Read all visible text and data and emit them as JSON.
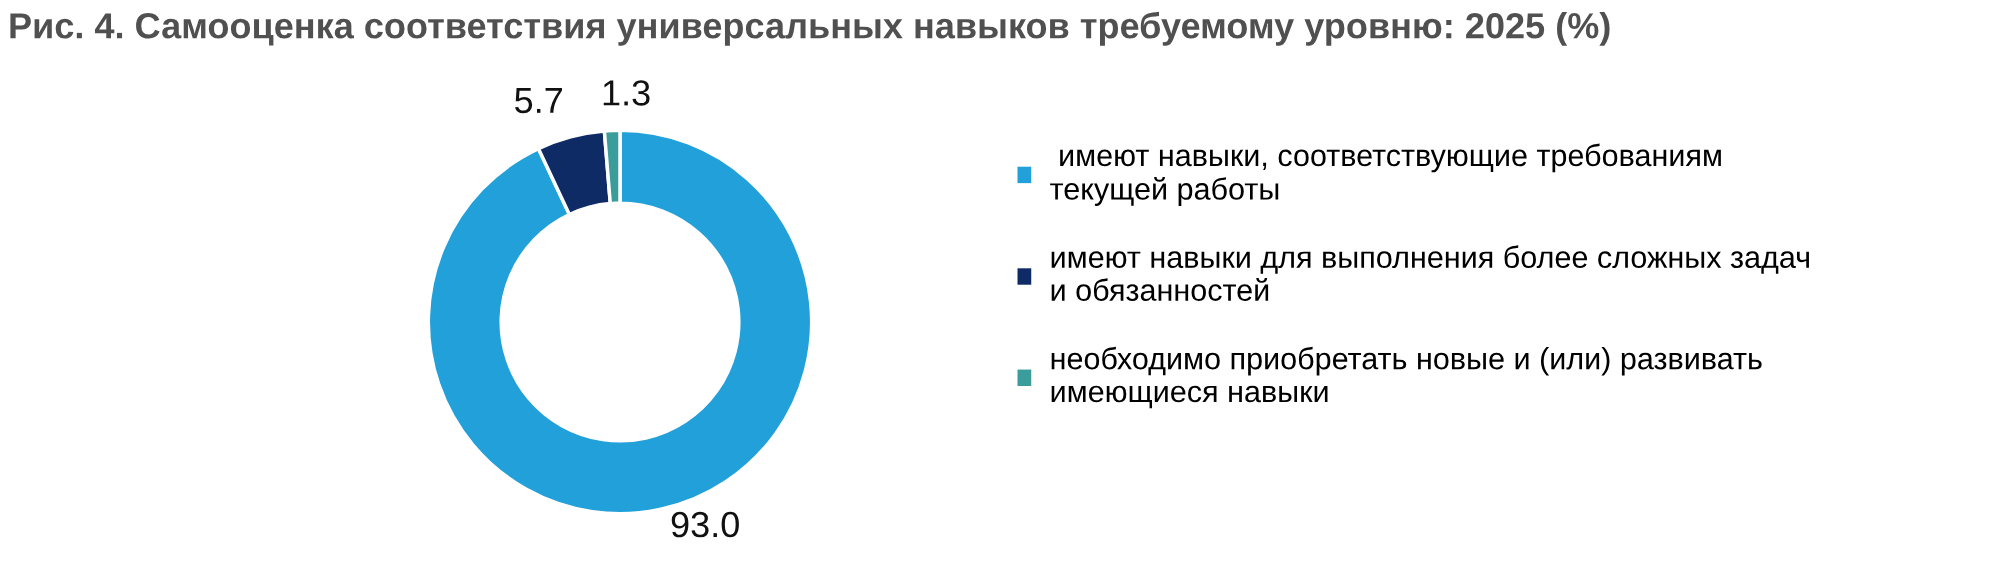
{
  "chart_data": {
    "type": "donut",
    "title": "Рис. 4. Самооценка соответствия универсальных навыков требуемому уровню: 2025 (%)",
    "categories": [
      " имеют навыки, соответствующие требованиям\nтекущей работы",
      "имеют навыки для выполнения более сложных задач\nи обязанностей",
      "необходимо приобретать новые и (или) развивать\nимеющиеся навыки"
    ],
    "values": [
      93.0,
      5.7,
      1.3
    ],
    "colors": [
      "#22a0d9",
      "#0f2b66",
      "#3b9c9c"
    ],
    "value_labels": [
      "93.0",
      "5.7",
      "1.3"
    ],
    "legend": "right"
  }
}
